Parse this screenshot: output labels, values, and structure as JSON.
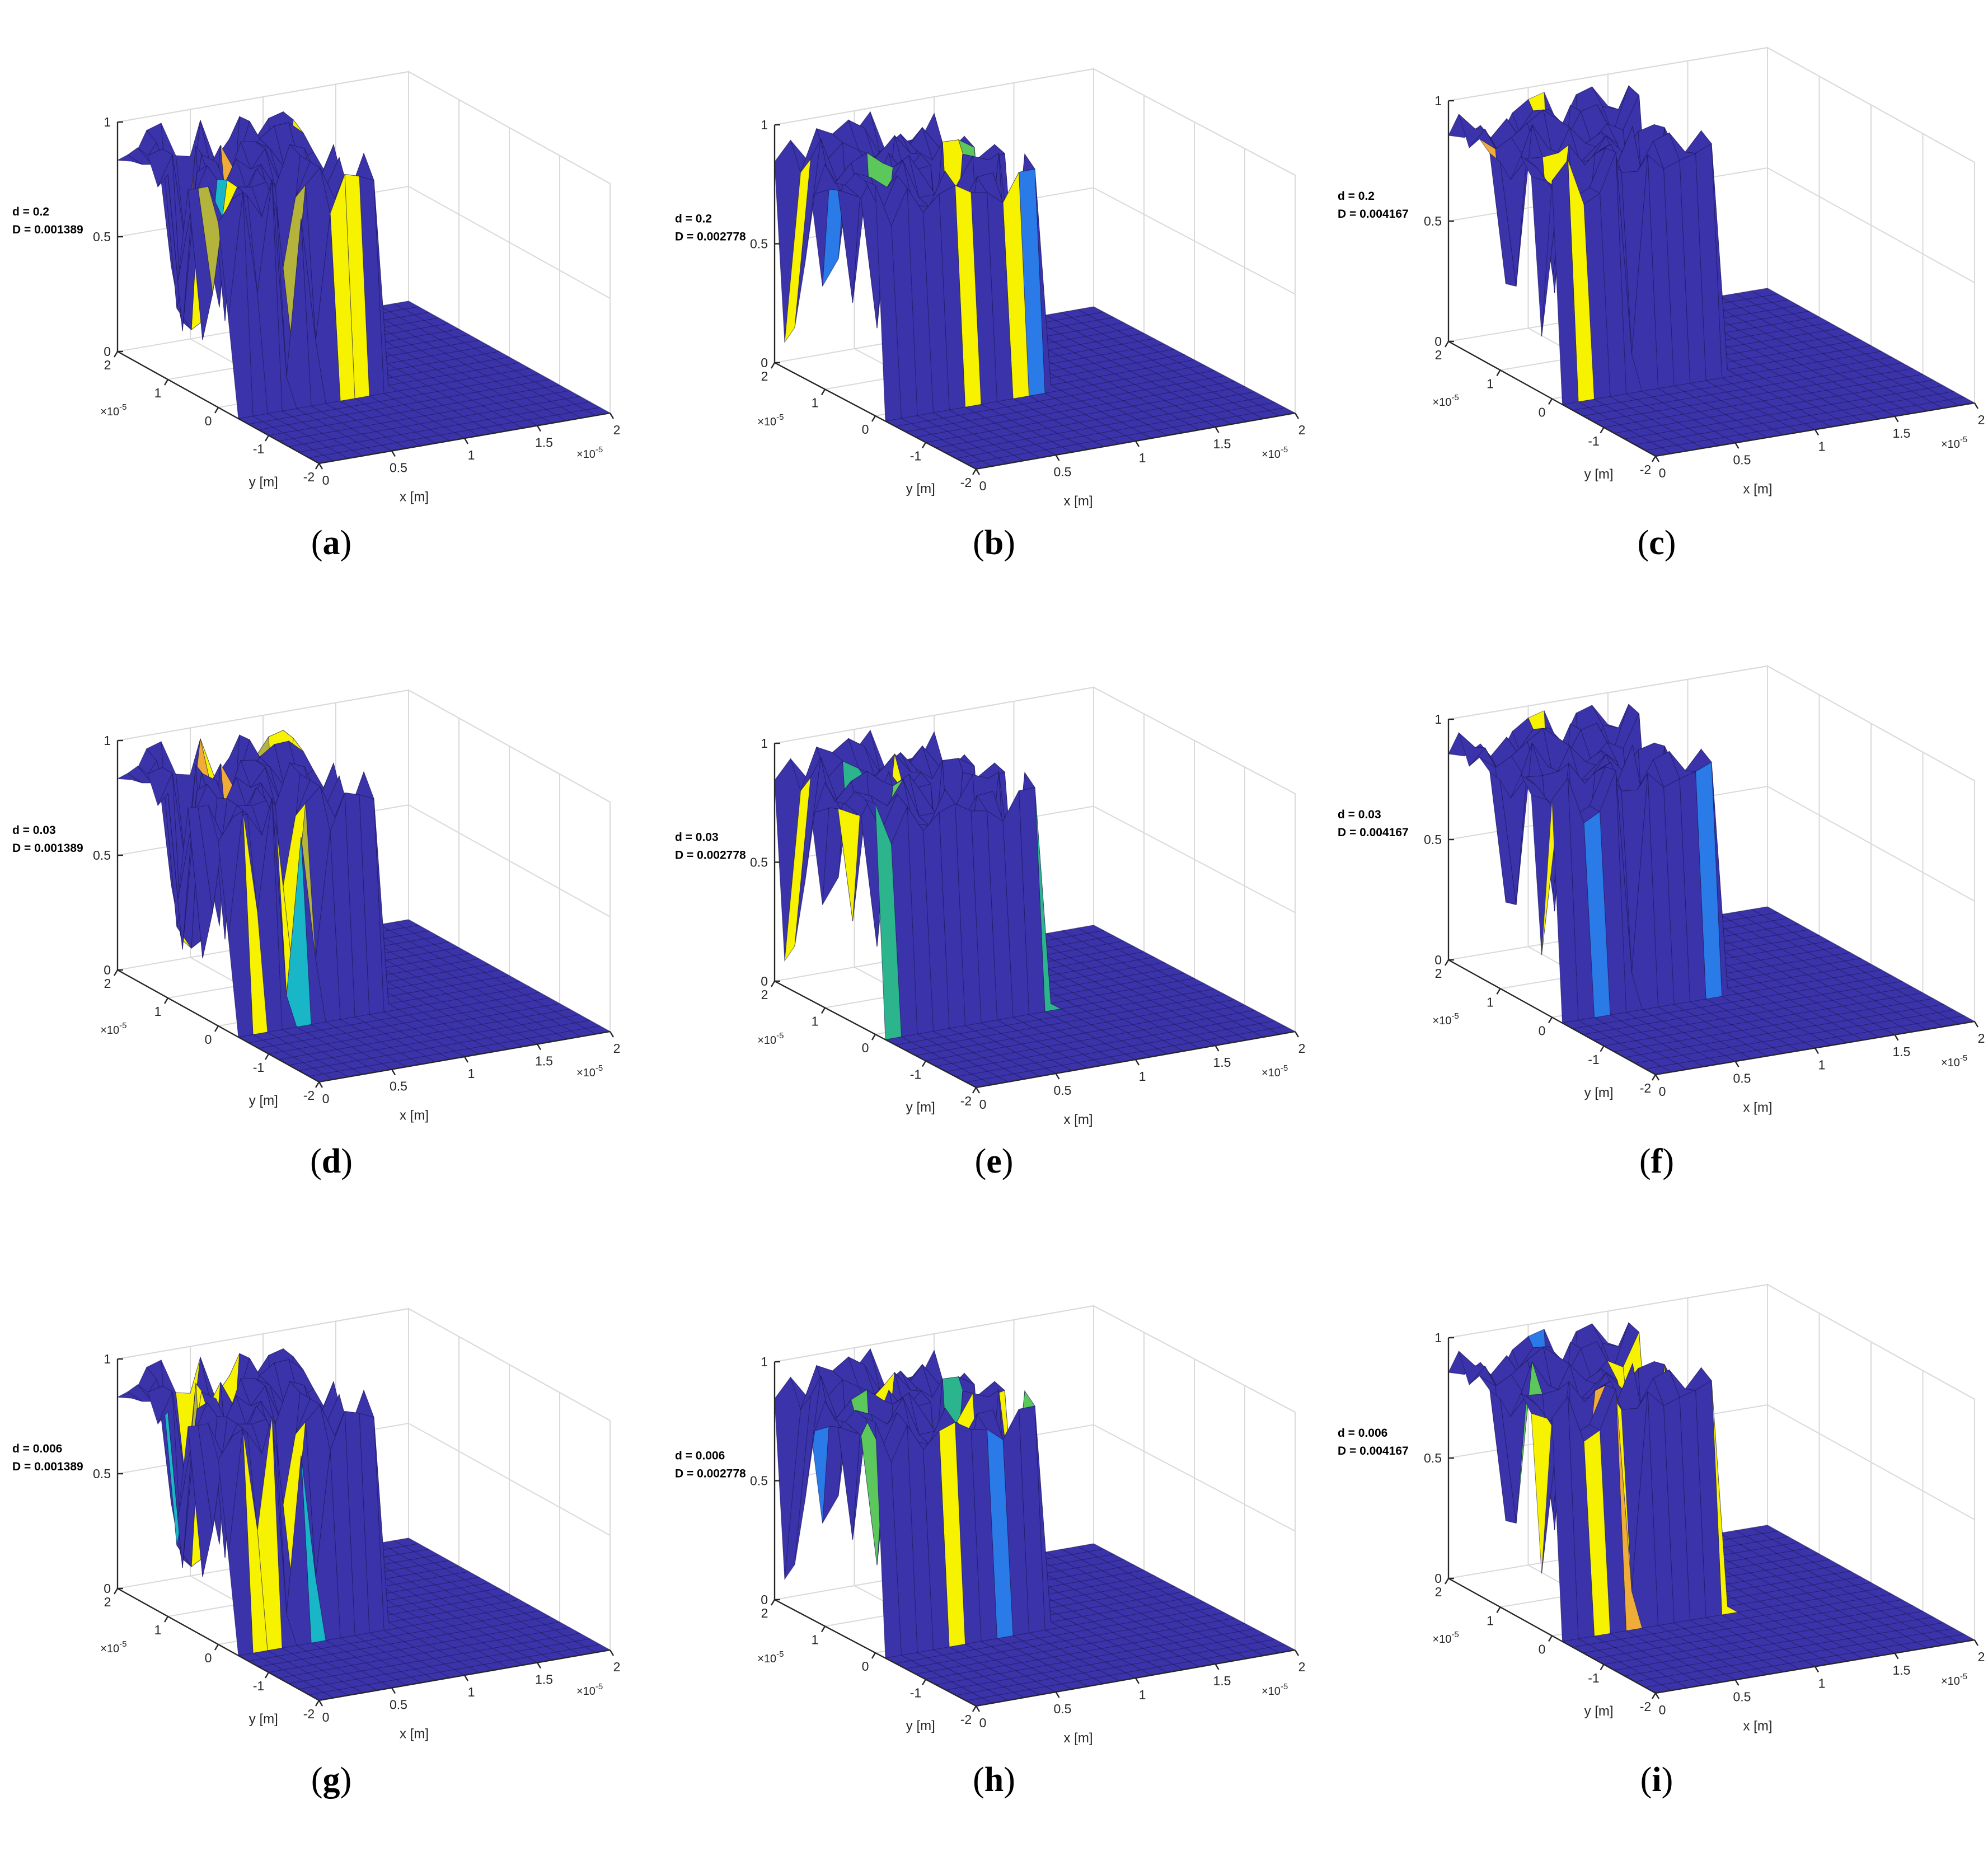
{
  "figure": {
    "title": ""
  },
  "shared": {
    "xlabel": "x [m]",
    "ylabel": "y [m]",
    "xlim": [
      0,
      2e-05
    ],
    "ylim": [
      -2e-05,
      2e-05
    ],
    "zlim": [
      0,
      1
    ],
    "x_ticks": [
      "0",
      "0.5",
      "1",
      "1.5",
      "2"
    ],
    "y_ticks": [
      "2",
      "1",
      "0",
      "-1",
      "-2"
    ],
    "z_ticks": [
      "0",
      "0.5",
      "1"
    ],
    "exponent_base": "×10",
    "exponent_power": "-5",
    "grid": true,
    "colors": {
      "base": "#3a33aa",
      "edge": "#1a1450",
      "yellow": "#f6f200",
      "orange": "#f0ac38",
      "green": "#5cc85c",
      "lightblue": "#2a7ae8",
      "cyan": "#19b6c8",
      "olive": "#b4b43c",
      "teal": "#2cb48c"
    }
  },
  "chart_data": [
    {
      "type": "surface",
      "panel_label": "a",
      "d": "d = 0.2",
      "D": "D = 0.001389",
      "variant": 0,
      "x_range": [
        0,
        2e-05
      ],
      "y_range": [
        -2e-05,
        2e-05
      ],
      "z_range": [
        0,
        1
      ]
    },
    {
      "type": "surface",
      "panel_label": "b",
      "d": "d = 0.2",
      "D": "D = 0.002778",
      "variant": 1,
      "x_range": [
        0,
        2e-05
      ],
      "y_range": [
        -2e-05,
        2e-05
      ],
      "z_range": [
        0,
        1
      ]
    },
    {
      "type": "surface",
      "panel_label": "c",
      "d": "d = 0.2",
      "D": "D = 0.004167",
      "variant": 2,
      "x_range": [
        0,
        2e-05
      ],
      "y_range": [
        -2e-05,
        2e-05
      ],
      "z_range": [
        0,
        1
      ]
    },
    {
      "type": "surface",
      "panel_label": "d",
      "d": "d = 0.03",
      "D": "D = 0.001389",
      "variant": 0,
      "x_range": [
        0,
        2e-05
      ],
      "y_range": [
        -2e-05,
        2e-05
      ],
      "z_range": [
        0,
        1
      ]
    },
    {
      "type": "surface",
      "panel_label": "e",
      "d": "d = 0.03",
      "D": "D = 0.002778",
      "variant": 1,
      "x_range": [
        0,
        2e-05
      ],
      "y_range": [
        -2e-05,
        2e-05
      ],
      "z_range": [
        0,
        1
      ]
    },
    {
      "type": "surface",
      "panel_label": "f",
      "d": "d = 0.03",
      "D": "D = 0.004167",
      "variant": 2,
      "x_range": [
        0,
        2e-05
      ],
      "y_range": [
        -2e-05,
        2e-05
      ],
      "z_range": [
        0,
        1
      ]
    },
    {
      "type": "surface",
      "panel_label": "g",
      "d": "d = 0.006",
      "D": "D = 0.001389",
      "variant": 0,
      "x_range": [
        0,
        2e-05
      ],
      "y_range": [
        -2e-05,
        2e-05
      ],
      "z_range": [
        0,
        1
      ]
    },
    {
      "type": "surface",
      "panel_label": "h",
      "d": "d = 0.006",
      "D": "D = 0.002778",
      "variant": 1,
      "x_range": [
        0,
        2e-05
      ],
      "y_range": [
        -2e-05,
        2e-05
      ],
      "z_range": [
        0,
        1
      ]
    },
    {
      "type": "surface",
      "panel_label": "i",
      "d": "d = 0.006",
      "D": "D = 0.004167",
      "variant": 2,
      "x_range": [
        0,
        2e-05
      ],
      "y_range": [
        -2e-05,
        2e-05
      ],
      "z_range": [
        0,
        1
      ]
    }
  ]
}
